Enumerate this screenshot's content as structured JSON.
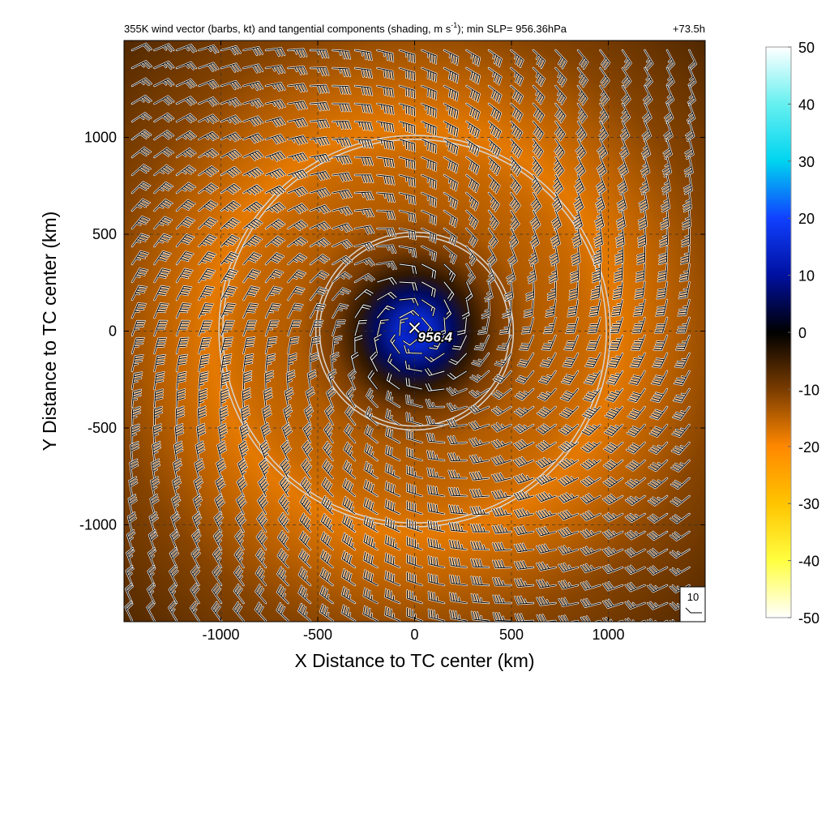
{
  "chart_data": {
    "type": "heatmap",
    "title": "355K wind vector (barbs, kt) and tangential components (shading, m s",
    "title_sup": "-1",
    "title_tail": "); min SLP= 956.36hPa",
    "time_label": "+73.5h",
    "xlabel": "X Distance to TC center (km)",
    "ylabel": "Y Distance to TC center (km)",
    "xlim": [
      -1500,
      1500
    ],
    "ylim": [
      -1500,
      1500
    ],
    "xticks": [
      -1000,
      -500,
      0,
      500,
      1000
    ],
    "yticks": [
      -1000,
      -500,
      0,
      500,
      1000
    ],
    "xtick_labels": [
      "-1000",
      "-500",
      "0",
      "500",
      "1000"
    ],
    "ytick_labels": [
      "-1000",
      "-500",
      "0",
      "500",
      "1000"
    ],
    "grid": "dashed",
    "center_marker_label": "956.4",
    "min_slp_hpa": 956.36,
    "range_rings_km": [
      500,
      1000
    ],
    "barb_reference_label": "10",
    "colorbar": {
      "vmin": -50,
      "vmax": 50,
      "ticks": [
        50,
        40,
        30,
        20,
        10,
        0,
        -10,
        -20,
        -30,
        -40,
        -50
      ],
      "tick_labels": [
        "50",
        "40",
        "30",
        "20",
        "10",
        "0",
        "-10",
        "-20",
        "-30",
        "-40",
        "-50"
      ],
      "stops": [
        {
          "value": 50,
          "color": "#ffffff"
        },
        {
          "value": 40,
          "color": "#66f0f0"
        },
        {
          "value": 30,
          "color": "#00d4f0"
        },
        {
          "value": 20,
          "color": "#1040ff"
        },
        {
          "value": 10,
          "color": "#0010a0"
        },
        {
          "value": 0,
          "color": "#000000"
        },
        {
          "value": -10,
          "color": "#7a3c00"
        },
        {
          "value": -20,
          "color": "#ff8800"
        },
        {
          "value": -30,
          "color": "#ffc400"
        },
        {
          "value": -40,
          "color": "#ffff40"
        },
        {
          "value": -50,
          "color": "#ffffff"
        }
      ]
    },
    "tangential_wind_profile_ms": [
      {
        "r_km": 0,
        "vt": 12
      },
      {
        "r_km": 80,
        "vt": 15
      },
      {
        "r_km": 200,
        "vt": 6
      },
      {
        "r_km": 300,
        "vt": -4
      },
      {
        "r_km": 420,
        "vt": -10
      },
      {
        "r_km": 600,
        "vt": -14
      },
      {
        "r_km": 900,
        "vt": -16
      },
      {
        "r_km": 1050,
        "vt": -18
      },
      {
        "r_km": 1300,
        "vt": -15
      },
      {
        "r_km": 1600,
        "vt": -11
      },
      {
        "r_km": 2200,
        "vt": -6
      }
    ]
  }
}
